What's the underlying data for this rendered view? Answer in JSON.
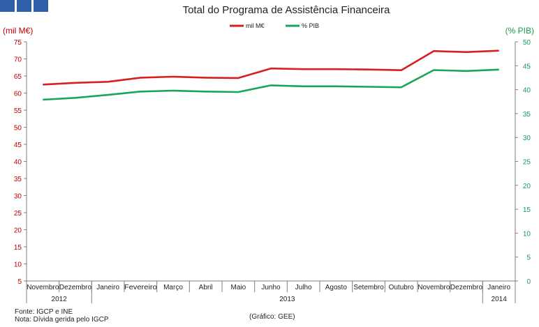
{
  "chart_data": {
    "type": "line",
    "title": "Total do Programa de Assistência Financeira",
    "left_axis": {
      "label": "(mil M€)",
      "color": "#c00000",
      "ylim": [
        5,
        75
      ],
      "ticks": [
        5,
        10,
        15,
        20,
        25,
        30,
        35,
        40,
        45,
        50,
        55,
        60,
        65,
        70,
        75
      ]
    },
    "right_axis": {
      "label": "(% PIB)",
      "color": "#1a9a55",
      "ylim": [
        0,
        50
      ],
      "ticks": [
        0,
        5,
        10,
        15,
        20,
        25,
        30,
        35,
        40,
        45,
        50
      ]
    },
    "categories": [
      "Novembro",
      "Dezembro",
      "Janeiro",
      "Fevereiro",
      "Março",
      "Abril",
      "Maio",
      "Junho",
      "Julho",
      "Agosto",
      "Setembro",
      "Outubro",
      "Novembro",
      "Dezembro",
      "Janeiro"
    ],
    "year_groups": [
      {
        "label": "2012",
        "start": 0,
        "end": 1
      },
      {
        "label": "2013",
        "start": 2,
        "end": 13
      },
      {
        "label": "2014",
        "start": 14,
        "end": 14
      }
    ],
    "series": [
      {
        "name": "mil M€",
        "axis": "left",
        "color": "#d62020",
        "values": [
          62.5,
          63.0,
          63.3,
          64.5,
          64.8,
          64.5,
          64.4,
          67.2,
          67.0,
          67.0,
          66.9,
          66.7,
          72.3,
          72.0,
          72.4
        ]
      },
      {
        "name": "% PIB",
        "axis": "right",
        "color": "#1aa55a",
        "values": [
          37.9,
          38.3,
          38.9,
          39.6,
          39.8,
          39.6,
          39.5,
          40.9,
          40.7,
          40.7,
          40.6,
          40.5,
          44.1,
          43.9,
          44.2
        ]
      }
    ],
    "legend_position": "top-center",
    "grid": false
  },
  "source_note": "Fonte: IGCP e INE",
  "note": "Nota: Dívida gerida pelo IGCP",
  "credit": "(Gráfico: GEE)"
}
